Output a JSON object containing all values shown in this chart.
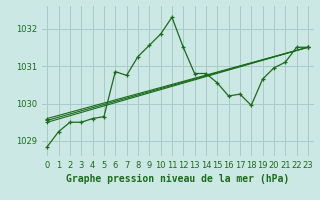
{
  "background_color": "#cbe8e4",
  "grid_color": "#a8ccc8",
  "line_color": "#1a6b1a",
  "title": "Graphe pression niveau de la mer (hPa)",
  "title_fontsize": 7,
  "tick_fontsize": 6,
  "ylim": [
    1028.6,
    1032.6
  ],
  "xlim": [
    -0.5,
    23.5
  ],
  "yticks": [
    1029,
    1030,
    1031,
    1032
  ],
  "xticks": [
    0,
    1,
    2,
    3,
    4,
    5,
    6,
    7,
    8,
    9,
    10,
    11,
    12,
    13,
    14,
    15,
    16,
    17,
    18,
    19,
    20,
    21,
    22,
    23
  ],
  "series_main": {
    "x": [
      0,
      1,
      2,
      3,
      4,
      5,
      6,
      7,
      8,
      9,
      10,
      11,
      12,
      13,
      14,
      15,
      16,
      17,
      18,
      19,
      20,
      21,
      22,
      23
    ],
    "y": [
      1028.85,
      1029.25,
      1029.5,
      1029.5,
      1029.6,
      1029.65,
      1030.85,
      1030.75,
      1031.25,
      1031.55,
      1031.85,
      1032.3,
      1031.5,
      1030.8,
      1030.8,
      1030.55,
      1030.2,
      1030.25,
      1029.95,
      1030.65,
      1030.95,
      1031.1,
      1031.5,
      1031.5
    ]
  },
  "series_straight": [
    {
      "x": [
        0,
        23
      ],
      "y": [
        1029.5,
        1031.5
      ]
    },
    {
      "x": [
        0,
        23
      ],
      "y": [
        1029.55,
        1031.5
      ]
    },
    {
      "x": [
        0,
        23
      ],
      "y": [
        1029.6,
        1031.5
      ]
    }
  ]
}
